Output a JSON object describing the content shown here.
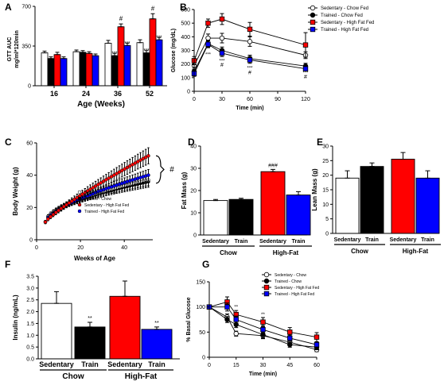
{
  "colors": {
    "sedentary_chow": "#ffffff",
    "trained_chow": "#000000",
    "sedentary_hff": "#ff0000",
    "trained_hff": "#0000ff"
  },
  "chart_data": [
    {
      "panel": "A",
      "type": "bar",
      "ylabel": "GTT AUC mg/ml*120min",
      "xlabel": "Age (Weeks)",
      "ylim": [
        0,
        700
      ],
      "yticks": [
        0,
        350,
        700
      ],
      "categories": [
        "16",
        "24",
        "36",
        "52"
      ],
      "series": [
        {
          "name": "Sedentary - Chow Fed",
          "values": [
            290,
            300,
            375,
            380
          ],
          "err": [
            15,
            15,
            25,
            25
          ]
        },
        {
          "name": "Trained - Chow Fed",
          "values": [
            240,
            295,
            265,
            290
          ],
          "err": [
            15,
            15,
            20,
            20
          ]
        },
        {
          "name": "Sedentary - High Fat Fed",
          "values": [
            275,
            285,
            520,
            590
          ],
          "err": [
            20,
            15,
            25,
            45
          ]
        },
        {
          "name": "Trained - High Fat Fed",
          "values": [
            240,
            265,
            355,
            405
          ],
          "err": [
            15,
            15,
            20,
            20
          ]
        }
      ],
      "annotations": [
        {
          "text": "#",
          "category": 2,
          "series": 2
        },
        {
          "text": "#",
          "category": 3,
          "series": 2
        },
        {
          "text": "***",
          "category": 2,
          "series": 1
        },
        {
          "text": "***",
          "category": 2,
          "series": 3
        },
        {
          "text": "***",
          "category": 3,
          "series": 1
        },
        {
          "text": "***",
          "category": 3,
          "series": 3
        }
      ]
    },
    {
      "panel": "B",
      "type": "line",
      "ylabel": "Glucose (mg/dL)",
      "xlabel": "Time (min)",
      "xlim": [
        0,
        120
      ],
      "ylim": [
        0,
        600
      ],
      "xticks": [
        0,
        30,
        60,
        90,
        120
      ],
      "yticks": [
        0,
        100,
        200,
        300,
        400,
        500,
        600
      ],
      "x": [
        0,
        15,
        30,
        60,
        120
      ],
      "series": [
        {
          "name": "Sedentary - Chow Fed",
          "values": [
            190,
            390,
            390,
            365,
            265
          ],
          "err": [
            20,
            30,
            35,
            35,
            25
          ]
        },
        {
          "name": "Trained - Chow Fed",
          "values": [
            145,
            350,
            300,
            240,
            185
          ],
          "err": [
            15,
            25,
            25,
            25,
            20
          ]
        },
        {
          "name": "Sedentary - High Fat Fed",
          "values": [
            225,
            500,
            530,
            455,
            340
          ],
          "err": [
            30,
            30,
            40,
            50,
            90
          ]
        },
        {
          "name": "Trained - High Fat Fed",
          "values": [
            130,
            345,
            280,
            230,
            165
          ],
          "err": [
            20,
            25,
            25,
            25,
            15
          ]
        }
      ],
      "annotations": [
        {
          "text": "***",
          "x": 15,
          "y": 258
        },
        {
          "text": "***",
          "x": 30,
          "y": 212
        },
        {
          "text": "#",
          "x": 30,
          "y": 180
        },
        {
          "text": "***",
          "x": 60,
          "y": 160
        },
        {
          "text": "#",
          "x": 60,
          "y": 125
        },
        {
          "text": "***",
          "x": 120,
          "y": 125
        },
        {
          "text": "#",
          "x": 120,
          "y": 92
        }
      ]
    },
    {
      "panel": "C",
      "type": "scatter",
      "ylabel": "Body Weight (g)",
      "xlabel": "Weeks of Age",
      "xlim": [
        0,
        53
      ],
      "ylim": [
        0,
        60
      ],
      "xticks": [
        0,
        20,
        40
      ],
      "yticks": [
        0,
        20,
        40,
        60
      ],
      "series": [
        {
          "name": "Sedentary - Chow",
          "start": [
            4,
            11
          ],
          "end": [
            51,
            37
          ],
          "curve": 0.45
        },
        {
          "name": "Trained - Chow",
          "start": [
            4,
            11
          ],
          "end": [
            51,
            36
          ],
          "curve": 0.45
        },
        {
          "name": "Sedentary - High Fat Fed",
          "start": [
            4,
            11
          ],
          "end": [
            51,
            52
          ],
          "curve": 0.15
        },
        {
          "name": "Trained - High Fat Fed",
          "start": [
            4,
            11
          ],
          "end": [
            51,
            40
          ],
          "curve": 0.35
        }
      ],
      "annotation": "#"
    },
    {
      "panel": "D",
      "type": "bar",
      "ylabel": "Fat Mass (g)",
      "ylim": [
        0,
        40
      ],
      "yticks": [
        0,
        10,
        20,
        30,
        40
      ],
      "categories": [
        "Sedentary",
        "Train",
        "Sedentary",
        "Train"
      ],
      "groups": [
        "Chow",
        "High-Fat"
      ],
      "values": [
        15.5,
        16,
        28.5,
        18
      ],
      "err": [
        0.5,
        0.5,
        1,
        1.5
      ],
      "annotations": [
        {
          "text": "###",
          "bar": 2
        }
      ]
    },
    {
      "panel": "E",
      "type": "bar",
      "ylabel": "Lean Mass (g)",
      "ylim": [
        0,
        30
      ],
      "yticks": [
        0,
        5,
        10,
        15,
        20,
        25,
        30
      ],
      "categories": [
        "Sedentary",
        "Train",
        "Sedentary",
        "Train"
      ],
      "groups": [
        "Chow",
        "High-Fat"
      ],
      "values": [
        19,
        23,
        25.5,
        19
      ],
      "err": [
        2.5,
        1.2,
        2.3,
        2.5
      ]
    },
    {
      "panel": "F",
      "type": "bar",
      "ylabel": "Insulin (ng/mL)",
      "ylim": [
        0,
        3.5
      ],
      "yticks": [
        "0.0",
        "0.5",
        "1.0",
        "1.5",
        "2.0",
        "2.5",
        "3.0",
        "3.5"
      ],
      "categories": [
        "Sedentary",
        "Train",
        "Sedentary",
        "Train"
      ],
      "groups": [
        "Chow",
        "High-Fat"
      ],
      "values": [
        2.35,
        1.35,
        2.65,
        1.25
      ],
      "err": [
        0.5,
        0.2,
        0.65,
        0.1
      ],
      "annotations": [
        {
          "text": "**",
          "bar": 1
        },
        {
          "text": "**",
          "bar": 3
        }
      ]
    },
    {
      "panel": "G",
      "type": "line",
      "ylabel": "% Basal Glucose",
      "xlabel": "Time (min)",
      "xlim": [
        0,
        60
      ],
      "ylim": [
        0,
        150
      ],
      "xticks": [
        0,
        15,
        30,
        45,
        60
      ],
      "yticks": [
        0,
        50,
        100,
        150
      ],
      "x": [
        0,
        10,
        15,
        30,
        45,
        60
      ],
      "series": [
        {
          "name": "Sedentary - Chow",
          "values": [
            100,
            80,
            47,
            43,
            30,
            15
          ],
          "err": [
            0,
            6,
            5,
            6,
            5,
            4
          ]
        },
        {
          "name": "Trained - Chow",
          "values": [
            100,
            75,
            65,
            45,
            25,
            20
          ],
          "err": [
            0,
            6,
            6,
            7,
            5,
            5
          ]
        },
        {
          "name": "Sedentary - High Fat Fed",
          "values": [
            100,
            110,
            85,
            70,
            50,
            40
          ],
          "err": [
            0,
            10,
            8,
            9,
            9,
            9
          ]
        },
        {
          "name": "Trained - High Fat Fed",
          "values": [
            100,
            100,
            75,
            55,
            38,
            25
          ],
          "err": [
            0,
            8,
            7,
            8,
            6,
            5
          ]
        }
      ],
      "annotations": [
        {
          "text": "**",
          "x": 15,
          "y": 97
        },
        {
          "text": "**",
          "x": 30,
          "y": 82
        }
      ]
    }
  ]
}
